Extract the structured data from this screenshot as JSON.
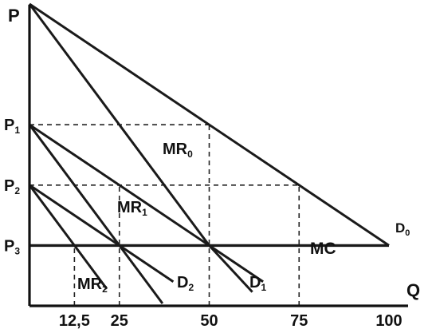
{
  "chart_data": {
    "type": "line",
    "axes": {
      "y_label": "P",
      "x_label": "Q",
      "x_ticks": [
        "12,5",
        "25",
        "50",
        "75",
        "100"
      ],
      "y_ticks": [
        {
          "base": "P",
          "sub": "1"
        },
        {
          "base": "P",
          "sub": "2"
        },
        {
          "base": "P",
          "sub": "3"
        }
      ]
    },
    "price_levels": {
      "P": 100,
      "P1": 60,
      "P2": 40,
      "P3": 20
    },
    "quantity_levels": [
      12.5,
      25,
      50,
      75,
      100
    ],
    "lines": [
      {
        "id": "D0",
        "label": {
          "base": "D",
          "sub": "0"
        },
        "points": [
          [
            0,
            100
          ],
          [
            100,
            20
          ]
        ]
      },
      {
        "id": "MR0",
        "label": {
          "base": "MR",
          "sub": "0"
        },
        "points": [
          [
            0,
            100
          ],
          [
            50,
            20
          ],
          [
            62,
            4.6
          ]
        ]
      },
      {
        "id": "D1",
        "label": {
          "base": "D",
          "sub": "1"
        },
        "points": [
          [
            0,
            60
          ],
          [
            50,
            20
          ],
          [
            65,
            8
          ]
        ]
      },
      {
        "id": "MR1",
        "label": {
          "base": "MR",
          "sub": "1"
        },
        "points": [
          [
            0,
            60
          ],
          [
            25,
            20
          ],
          [
            37,
            0.8
          ]
        ]
      },
      {
        "id": "D2",
        "label": {
          "base": "D",
          "sub": "2"
        },
        "points": [
          [
            0,
            40
          ],
          [
            25,
            20
          ],
          [
            40,
            8
          ]
        ]
      },
      {
        "id": "MR2",
        "label": {
          "base": "MR",
          "sub": "2"
        },
        "points": [
          [
            0,
            40
          ],
          [
            12.5,
            20
          ],
          [
            21.5,
            5.6
          ]
        ]
      },
      {
        "id": "MC",
        "label": {
          "base": "MC",
          "sub": ""
        },
        "points": [
          [
            0,
            20
          ],
          [
            100,
            20
          ]
        ]
      }
    ],
    "guides": [
      {
        "type": "h",
        "y": 60,
        "x": [
          0,
          50
        ]
      },
      {
        "type": "v",
        "x": 50,
        "y": [
          0,
          60
        ]
      },
      {
        "type": "h",
        "y": 40,
        "x": [
          0,
          75
        ]
      },
      {
        "type": "v",
        "x": 75,
        "y": [
          0,
          40
        ]
      },
      {
        "type": "v",
        "x": 25,
        "y": [
          0,
          40
        ]
      },
      {
        "type": "v",
        "x": 12.5,
        "y": [
          0,
          20
        ]
      }
    ],
    "grid": false,
    "legend": "none"
  }
}
